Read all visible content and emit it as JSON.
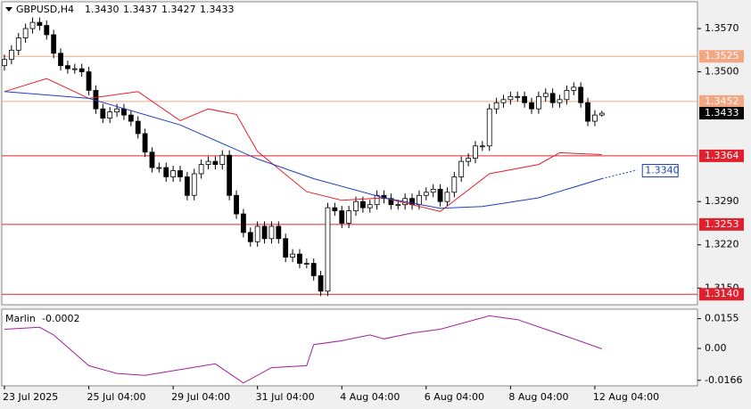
{
  "chart_data": [
    {
      "type": "candlestick",
      "title": "GBPUSD,H4",
      "ohlc_labels": [
        "1.3430",
        "1.3437",
        "1.3427",
        "1.3433"
      ],
      "categories": [
        "23 Jul 2025",
        null,
        null,
        null,
        null,
        null,
        null,
        null,
        null,
        null,
        null,
        null,
        "25 Jul 04:00",
        null,
        null,
        null,
        null,
        null,
        null,
        null,
        null,
        null,
        null,
        null,
        "29 Jul 04:00",
        null,
        null,
        null,
        null,
        null,
        null,
        null,
        null,
        null,
        null,
        null,
        "31 Jul 04:00",
        null,
        null,
        null,
        null,
        null,
        null,
        null,
        null,
        null,
        null,
        null,
        "4 Aug 04:00",
        null,
        null,
        null,
        null,
        null,
        null,
        null,
        null,
        null,
        null,
        null,
        "6 Aug 04:00",
        null,
        null,
        null,
        null,
        null,
        null,
        null,
        null,
        null,
        null,
        null,
        "8 Aug 04:00",
        null,
        null,
        null,
        null,
        null,
        null,
        null,
        null,
        null,
        null,
        null,
        "12 Aug 04:00",
        null
      ],
      "open": [
        1.351,
        1.352,
        1.3535,
        1.3555,
        1.357,
        1.358,
        1.3575,
        1.356,
        1.353,
        1.351,
        1.3505,
        1.3505,
        1.35,
        1.347,
        1.344,
        1.3425,
        1.3435,
        1.344,
        1.343,
        1.342,
        1.34,
        1.337,
        1.3345,
        1.3345,
        1.333,
        1.334,
        1.333,
        1.33,
        1.3335,
        1.335,
        1.3355,
        1.335,
        1.3365,
        1.33,
        1.327,
        1.324,
        1.3225,
        1.325,
        1.323,
        1.325,
        1.323,
        1.32,
        1.3205,
        1.319,
        1.319,
        1.317,
        1.3145,
        1.328,
        1.3275,
        1.3255,
        1.3275,
        1.329,
        1.328,
        1.3285,
        1.33,
        1.3295,
        1.3285,
        1.3285,
        1.3295,
        1.3285,
        1.33,
        1.3305,
        1.331,
        1.329,
        1.3305,
        1.333,
        1.3355,
        1.336,
        1.338,
        1.338,
        1.344,
        1.345,
        1.3455,
        1.346,
        1.346,
        1.345,
        1.344,
        1.346,
        1.3465,
        1.345,
        1.3455,
        1.347,
        1.3475,
        1.345,
        1.342,
        1.343
      ],
      "high": [
        1.3528,
        1.3543,
        1.3563,
        1.3578,
        1.3588,
        1.3588,
        1.3583,
        1.3568,
        1.3538,
        1.3518,
        1.3513,
        1.3513,
        1.3508,
        1.3478,
        1.3448,
        1.3443,
        1.3448,
        1.3448,
        1.3438,
        1.3428,
        1.3408,
        1.3378,
        1.3353,
        1.3353,
        1.3348,
        1.3348,
        1.3338,
        1.3343,
        1.3358,
        1.3363,
        1.3363,
        1.3373,
        1.3373,
        1.3308,
        1.3278,
        1.3248,
        1.3258,
        1.3258,
        1.3258,
        1.3258,
        1.3238,
        1.3213,
        1.3213,
        1.3198,
        1.3198,
        1.3178,
        1.3288,
        1.3288,
        1.3283,
        1.3283,
        1.3298,
        1.3298,
        1.3293,
        1.3308,
        1.3308,
        1.3303,
        1.3293,
        1.3303,
        1.3303,
        1.3308,
        1.3313,
        1.3318,
        1.3318,
        1.3313,
        1.3338,
        1.3363,
        1.3368,
        1.3388,
        1.3388,
        1.3448,
        1.3458,
        1.3463,
        1.3468,
        1.3468,
        1.3468,
        1.3458,
        1.3468,
        1.3473,
        1.3473,
        1.3463,
        1.3478,
        1.3483,
        1.3483,
        1.3458,
        1.3438,
        1.3437
      ],
      "low": [
        1.3502,
        1.3512,
        1.3527,
        1.3547,
        1.3562,
        1.3567,
        1.3552,
        1.3522,
        1.3502,
        1.3497,
        1.3497,
        1.3492,
        1.3462,
        1.3432,
        1.3417,
        1.3417,
        1.3427,
        1.3422,
        1.3412,
        1.3392,
        1.3362,
        1.3337,
        1.3337,
        1.3322,
        1.3322,
        1.3322,
        1.3292,
        1.3292,
        1.3327,
        1.3342,
        1.3342,
        1.3342,
        1.3292,
        1.3262,
        1.3232,
        1.3217,
        1.3217,
        1.3222,
        1.3222,
        1.3222,
        1.3192,
        1.3192,
        1.3182,
        1.3182,
        1.3162,
        1.3137,
        1.3137,
        1.3267,
        1.3247,
        1.3247,
        1.3267,
        1.3272,
        1.3272,
        1.3277,
        1.3287,
        1.3277,
        1.3277,
        1.3277,
        1.3277,
        1.3277,
        1.3292,
        1.3297,
        1.3282,
        1.3282,
        1.3297,
        1.3322,
        1.3347,
        1.3352,
        1.3372,
        1.3372,
        1.3432,
        1.3442,
        1.3447,
        1.3452,
        1.3442,
        1.3432,
        1.3432,
        1.3452,
        1.3442,
        1.3442,
        1.3447,
        1.3462,
        1.3442,
        1.3412,
        1.3412,
        1.3427
      ],
      "close": [
        1.352,
        1.3535,
        1.3555,
        1.357,
        1.358,
        1.3575,
        1.356,
        1.353,
        1.351,
        1.3505,
        1.3505,
        1.35,
        1.347,
        1.344,
        1.3425,
        1.3435,
        1.344,
        1.343,
        1.342,
        1.34,
        1.337,
        1.3345,
        1.3345,
        1.333,
        1.334,
        1.333,
        1.33,
        1.3335,
        1.335,
        1.3355,
        1.335,
        1.3365,
        1.33,
        1.327,
        1.324,
        1.3225,
        1.325,
        1.323,
        1.325,
        1.323,
        1.32,
        1.3205,
        1.319,
        1.319,
        1.317,
        1.3145,
        1.328,
        1.3275,
        1.3255,
        1.3275,
        1.329,
        1.328,
        1.3285,
        1.33,
        1.3295,
        1.3285,
        1.3285,
        1.3295,
        1.3285,
        1.33,
        1.3305,
        1.331,
        1.329,
        1.3305,
        1.333,
        1.3355,
        1.336,
        1.338,
        1.338,
        1.344,
        1.345,
        1.3455,
        1.346,
        1.346,
        1.345,
        1.344,
        1.346,
        1.3465,
        1.345,
        1.3455,
        1.347,
        1.3475,
        1.345,
        1.342,
        1.343,
        1.3433
      ],
      "lines": [
        {
          "color": "#e0202c",
          "x": [
            0,
            6,
            12,
            19,
            25,
            29,
            33,
            36,
            43,
            48,
            54,
            62,
            69,
            76,
            79,
            85
          ],
          "values": [
            1.3468,
            1.3489,
            1.3457,
            1.3468,
            1.3421,
            1.344,
            1.3431,
            1.3371,
            1.3306,
            1.3292,
            1.3296,
            1.3274,
            1.3335,
            1.335,
            1.3369,
            1.3366
          ]
        },
        {
          "color": "#1f3fbf",
          "x": [
            0,
            12,
            25,
            36,
            44,
            54,
            62,
            68,
            76,
            85
          ],
          "values": [
            1.3468,
            1.3457,
            1.3414,
            1.3359,
            1.3327,
            1.3296,
            1.3279,
            1.3282,
            1.3296,
            1.3327
          ]
        },
        {
          "color": "#1f3fbf",
          "style": "dotted",
          "x": [
            85,
            90
          ],
          "values": [
            1.3327,
            1.3341
          ]
        }
      ],
      "levels": [
        {
          "value": 1.3525,
          "label": "1.3525",
          "color": "#f4a582"
        },
        {
          "value": 1.3452,
          "label": "1.3452",
          "color": "#f4a582"
        },
        {
          "value": 1.3364,
          "label": "1.3364",
          "color": "#e0202c"
        },
        {
          "value": 1.3253,
          "label": "1.3253",
          "color": "#e0202c"
        },
        {
          "value": 1.314,
          "label": "1.3140",
          "color": "#e0202c"
        }
      ],
      "annotation": {
        "value": 1.334,
        "label": "1.3340",
        "color": "#1f3fbf"
      },
      "ylim": [
        1.3123,
        1.3609
      ],
      "yticks": [
        {
          "value": 1.357,
          "label": "1.3570"
        },
        {
          "value": 1.35,
          "label": "1.3500"
        },
        {
          "value": 1.329,
          "label": "1.3290"
        },
        {
          "value": 1.322,
          "label": "1.3220"
        },
        {
          "value": 1.315,
          "label": "1.3150"
        }
      ]
    },
    {
      "type": "line",
      "title": "Marlin",
      "last_value": -0.0002,
      "color": "#a020a0",
      "x": [
        0,
        5,
        7,
        12,
        16,
        20,
        25,
        30,
        34,
        38,
        43,
        44,
        48,
        52,
        54,
        58,
        62,
        65,
        69,
        73,
        77,
        81,
        85
      ],
      "values": [
        0.01,
        0.011,
        0.007,
        -0.009,
        -0.013,
        -0.014,
        -0.011,
        -0.008,
        -0.018,
        -0.01,
        -0.009,
        0.002,
        0.004,
        0.007,
        0.005,
        0.008,
        0.01,
        0.013,
        0.017,
        0.015,
        0.01,
        0.005,
        -0.0002
      ],
      "ylim": [
        -0.019,
        0.0195
      ],
      "yticks": [
        0.0155,
        {
          "value": 0,
          "label": "0.00"
        },
        -0.0166
      ]
    }
  ]
}
